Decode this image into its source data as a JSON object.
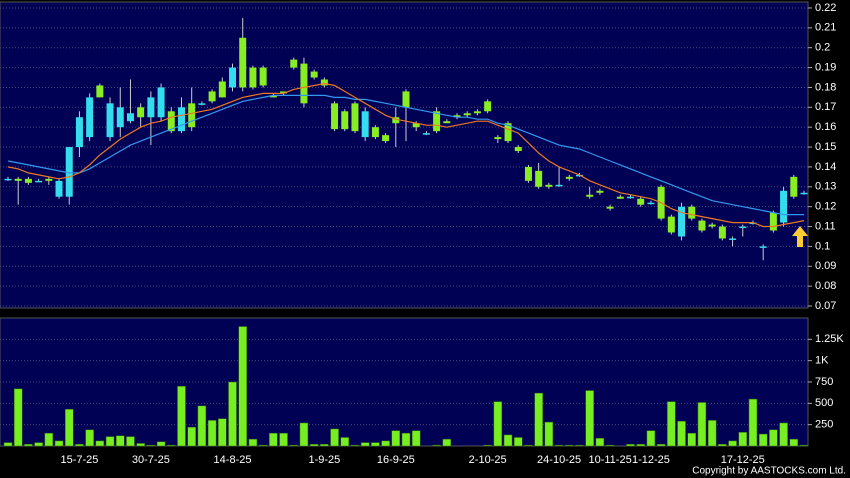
{
  "chart_data": [
    {
      "type": "candlestick",
      "open": [
        0.134,
        0.134,
        0.134,
        0.133,
        0.134,
        0.125,
        0.125,
        0.15,
        0.155,
        0.181,
        0.155,
        0.16,
        0.163,
        0.17,
        0.165,
        0.165,
        0.168,
        0.158,
        0.172,
        0.172,
        0.178,
        0.183,
        0.18,
        0.205,
        0.19,
        0.19,
        0.176,
        0.178,
        0.194,
        0.192,
        0.188,
        0.184,
        0.172,
        0.168,
        0.172,
        0.155,
        0.16,
        0.156,
        0.165,
        0.178,
        0.162,
        0.157,
        0.168,
        0.163,
        0.166,
        0.167,
        0.168,
        0.173,
        0.155,
        0.162,
        0.15,
        0.14,
        0.138,
        0.131,
        0.131,
        0.135,
        0.136,
        0.126,
        0.128,
        0.12,
        0.125,
        0.125,
        0.124,
        0.122,
        0.13,
        0.115,
        0.105,
        0.12,
        0.113,
        0.111,
        0.11,
        0.104,
        0.11,
        0.112,
        0.1,
        0.117,
        0.112,
        0.135,
        0.127
      ],
      "high": [
        0.135,
        0.135,
        0.135,
        0.134,
        0.135,
        0.134,
        0.15,
        0.168,
        0.177,
        0.182,
        0.175,
        0.18,
        0.184,
        0.172,
        0.178,
        0.182,
        0.17,
        0.175,
        0.18,
        0.173,
        0.179,
        0.185,
        0.192,
        0.215,
        0.191,
        0.191,
        0.177,
        0.178,
        0.195,
        0.195,
        0.189,
        0.185,
        0.173,
        0.169,
        0.173,
        0.17,
        0.161,
        0.157,
        0.17,
        0.179,
        0.163,
        0.158,
        0.17,
        0.164,
        0.167,
        0.168,
        0.169,
        0.174,
        0.156,
        0.163,
        0.151,
        0.141,
        0.142,
        0.132,
        0.14,
        0.136,
        0.137,
        0.13,
        0.129,
        0.121,
        0.126,
        0.126,
        0.125,
        0.123,
        0.131,
        0.116,
        0.122,
        0.121,
        0.114,
        0.112,
        0.111,
        0.105,
        0.111,
        0.113,
        0.101,
        0.118,
        0.13,
        0.136,
        0.128
      ],
      "low": [
        0.133,
        0.121,
        0.131,
        0.133,
        0.131,
        0.124,
        0.121,
        0.145,
        0.153,
        0.175,
        0.153,
        0.155,
        0.162,
        0.16,
        0.151,
        0.163,
        0.157,
        0.157,
        0.158,
        0.171,
        0.172,
        0.175,
        0.178,
        0.178,
        0.179,
        0.18,
        0.175,
        0.176,
        0.189,
        0.17,
        0.184,
        0.18,
        0.158,
        0.158,
        0.157,
        0.153,
        0.154,
        0.152,
        0.15,
        0.153,
        0.158,
        0.156,
        0.157,
        0.162,
        0.164,
        0.165,
        0.166,
        0.167,
        0.152,
        0.152,
        0.147,
        0.132,
        0.129,
        0.129,
        0.13,
        0.133,
        0.135,
        0.124,
        0.126,
        0.118,
        0.124,
        0.124,
        0.12,
        0.121,
        0.113,
        0.106,
        0.103,
        0.113,
        0.107,
        0.109,
        0.103,
        0.1,
        0.105,
        0.111,
        0.093,
        0.107,
        0.11,
        0.124,
        0.126
      ],
      "close": [
        0.134,
        0.133,
        0.132,
        0.133,
        0.133,
        0.133,
        0.15,
        0.165,
        0.175,
        0.175,
        0.172,
        0.17,
        0.167,
        0.165,
        0.175,
        0.18,
        0.158,
        0.17,
        0.16,
        0.172,
        0.173,
        0.175,
        0.19,
        0.18,
        0.18,
        0.181,
        0.175,
        0.177,
        0.19,
        0.172,
        0.185,
        0.181,
        0.159,
        0.159,
        0.158,
        0.168,
        0.155,
        0.153,
        0.162,
        0.17,
        0.16,
        0.157,
        0.158,
        0.162,
        0.165,
        0.166,
        0.167,
        0.168,
        0.154,
        0.153,
        0.148,
        0.133,
        0.13,
        0.13,
        0.131,
        0.134,
        0.136,
        0.125,
        0.127,
        0.119,
        0.124,
        0.125,
        0.121,
        0.122,
        0.114,
        0.107,
        0.12,
        0.114,
        0.108,
        0.11,
        0.104,
        0.104,
        0.11,
        0.112,
        0.1,
        0.108,
        0.128,
        0.125,
        0.127
      ],
      "up_color": "#33ddee",
      "down_color": "#88ee22",
      "series": [
        {
          "color": "#3399ee",
          "values": [
            0.143,
            0.142,
            0.141,
            0.14,
            0.139,
            0.138,
            0.137,
            0.137,
            0.139,
            0.142,
            0.145,
            0.148,
            0.151,
            0.153,
            0.155,
            0.157,
            0.159,
            0.161,
            0.163,
            0.165,
            0.167,
            0.169,
            0.171,
            0.173,
            0.174,
            0.175,
            0.176,
            0.176,
            0.176,
            0.176,
            0.176,
            0.176,
            0.175,
            0.175,
            0.174,
            0.174,
            0.173,
            0.172,
            0.171,
            0.17,
            0.169,
            0.168,
            0.167,
            0.166,
            0.165,
            0.165,
            0.164,
            0.164,
            0.162,
            0.161,
            0.159,
            0.157,
            0.155,
            0.153,
            0.151,
            0.15,
            0.149,
            0.147,
            0.145,
            0.143,
            0.141,
            0.139,
            0.137,
            0.135,
            0.133,
            0.131,
            0.129,
            0.127,
            0.125,
            0.123,
            0.122,
            0.121,
            0.12,
            0.119,
            0.118,
            0.117,
            0.116,
            0.116,
            0.116
          ]
        },
        {
          "color": "#ee7722",
          "values": [
            0.14,
            0.139,
            0.137,
            0.136,
            0.135,
            0.134,
            0.135,
            0.137,
            0.141,
            0.146,
            0.15,
            0.154,
            0.157,
            0.16,
            0.162,
            0.163,
            0.165,
            0.166,
            0.167,
            0.168,
            0.169,
            0.171,
            0.173,
            0.175,
            0.176,
            0.177,
            0.177,
            0.177,
            0.179,
            0.18,
            0.181,
            0.182,
            0.181,
            0.178,
            0.175,
            0.172,
            0.169,
            0.166,
            0.164,
            0.163,
            0.162,
            0.161,
            0.161,
            0.16,
            0.161,
            0.162,
            0.163,
            0.163,
            0.161,
            0.159,
            0.157,
            0.152,
            0.147,
            0.143,
            0.14,
            0.138,
            0.136,
            0.133,
            0.131,
            0.129,
            0.127,
            0.126,
            0.125,
            0.124,
            0.122,
            0.119,
            0.117,
            0.116,
            0.115,
            0.114,
            0.113,
            0.112,
            0.112,
            0.112,
            0.11,
            0.11,
            0.111,
            0.112,
            0.113
          ]
        }
      ],
      "ylim": [
        0.069,
        0.223
      ],
      "yticks": [
        0.07,
        0.08,
        0.09,
        0.1,
        0.11,
        0.12,
        0.13,
        0.14,
        0.15,
        0.16,
        0.17,
        0.18,
        0.19,
        0.2,
        0.21,
        0.22
      ],
      "grid": true
    },
    {
      "type": "bar",
      "categories": [
        null,
        null,
        null,
        null,
        null,
        null,
        null,
        "15-7-25",
        null,
        null,
        null,
        null,
        null,
        null,
        "30-7-25",
        null,
        null,
        null,
        null,
        null,
        null,
        null,
        "14-8-25",
        null,
        null,
        null,
        null,
        null,
        null,
        null,
        null,
        "1-9-25",
        null,
        null,
        null,
        null,
        null,
        null,
        "16-9-25",
        null,
        null,
        null,
        null,
        null,
        null,
        null,
        null,
        "2-10-25",
        null,
        null,
        null,
        null,
        null,
        null,
        "24-10-25",
        null,
        null,
        null,
        null,
        "10-11-25",
        null,
        null,
        null,
        "1-12-25",
        null,
        null,
        null,
        null,
        null,
        null,
        null,
        null,
        "17-12-25",
        null,
        null,
        null,
        null,
        null,
        null
      ],
      "values": [
        40,
        670,
        20,
        40,
        150,
        60,
        430,
        20,
        190,
        60,
        110,
        120,
        110,
        30,
        10,
        50,
        10,
        700,
        220,
        470,
        300,
        320,
        750,
        1400,
        80,
        10,
        150,
        150,
        10,
        270,
        20,
        20,
        200,
        100,
        10,
        40,
        40,
        60,
        180,
        150,
        180,
        0,
        10,
        80,
        0,
        0,
        0,
        10,
        520,
        130,
        100,
        10,
        620,
        280,
        10,
        10,
        10,
        650,
        90,
        10,
        0,
        20,
        20,
        180,
        20,
        520,
        290,
        150,
        510,
        300,
        20,
        60,
        160,
        550,
        140,
        190,
        270,
        80,
        10
      ],
      "color": "#77ee22",
      "ylim": [
        0,
        1500
      ],
      "yticks": [
        250,
        500,
        750,
        {
          "value": 1000,
          "label": "1K"
        },
        {
          "value": 1250,
          "label": "1.25K"
        }
      ],
      "grid": true
    }
  ],
  "footer": "Copyright by AASTOCKS.com Ltd."
}
